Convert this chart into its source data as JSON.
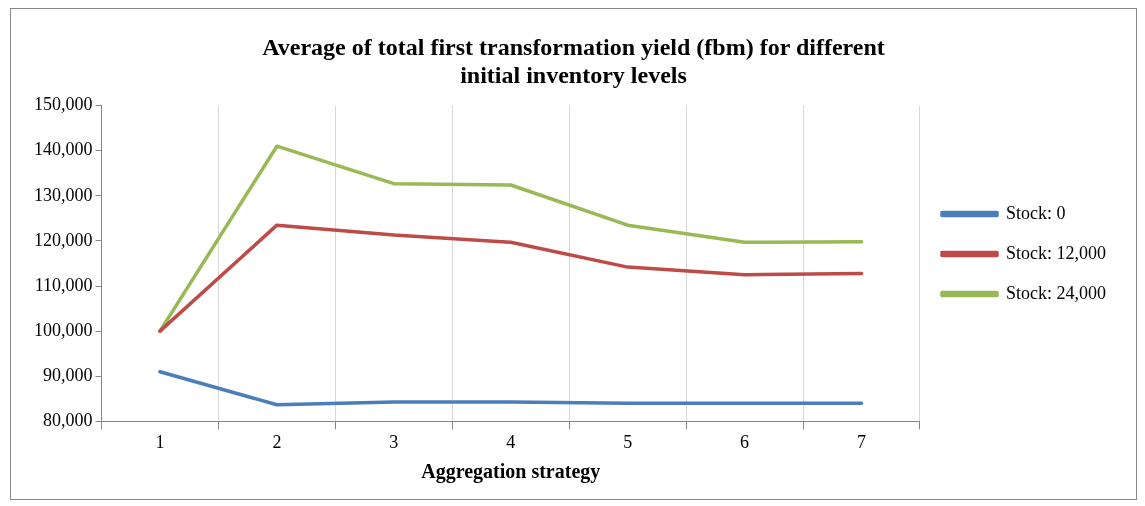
{
  "chart_data": {
    "type": "line",
    "title": "Average of total first transformation yield (fbm) for different initial inventory levels",
    "xlabel": "Aggregation strategy",
    "categories": [
      "1",
      "2",
      "3",
      "4",
      "5",
      "6",
      "7"
    ],
    "series": [
      {
        "name": "Stock: 0",
        "color": "#4a7ebb",
        "values": [
          91000,
          83700,
          84300,
          84300,
          84000,
          84000,
          84000
        ]
      },
      {
        "name": "Stock: 12,000",
        "color": "#be4b48",
        "values": [
          100000,
          123500,
          121300,
          119700,
          114200,
          112500,
          112800
        ]
      },
      {
        "name": "Stock: 24,000",
        "color": "#98b954",
        "values": [
          100000,
          141000,
          132700,
          132400,
          123500,
          119700,
          119800
        ]
      }
    ],
    "ylim": [
      80000,
      150000
    ],
    "yticks": [
      {
        "value": 80000,
        "label": "80,000"
      },
      {
        "value": 90000,
        "label": "90,000"
      },
      {
        "value": 100000,
        "label": "100,000"
      },
      {
        "value": 110000,
        "label": "110,000"
      },
      {
        "value": 120000,
        "label": "120,000"
      },
      {
        "value": 130000,
        "label": "130,000"
      },
      {
        "value": 140000,
        "label": "140,000"
      },
      {
        "value": 150000,
        "label": "150,000"
      }
    ],
    "grid": "x",
    "legend": "right",
    "marker": "none",
    "line_style": "solid"
  }
}
